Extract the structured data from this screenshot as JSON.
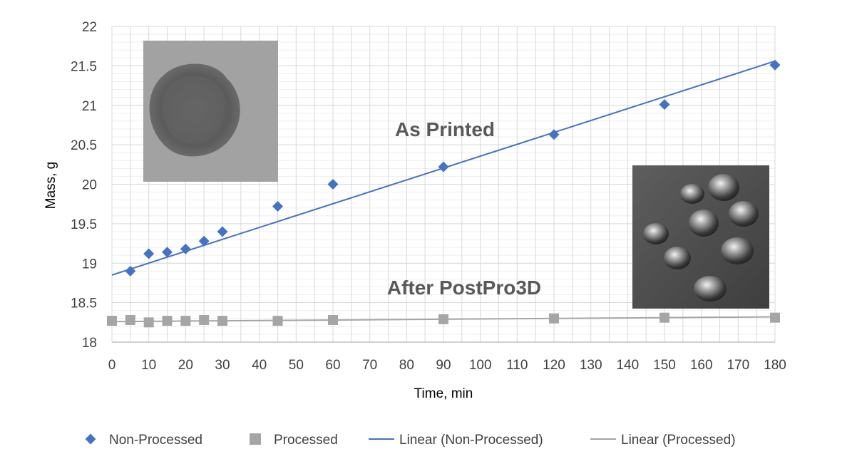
{
  "chart_data": {
    "type": "scatter",
    "xlabel": "Time, min",
    "ylabel": "Mass, g",
    "xlim": [
      0,
      180
    ],
    "ylim": [
      18,
      22
    ],
    "x_ticks": [
      0,
      5,
      10,
      15,
      20,
      25,
      30,
      35,
      40,
      45,
      50,
      55,
      60,
      65,
      70,
      75,
      80,
      85,
      90,
      95,
      100,
      105,
      110,
      115,
      120,
      125,
      130,
      135,
      140,
      145,
      150,
      155,
      160,
      165,
      170,
      175,
      180
    ],
    "x_tick_labels": [
      "0",
      "10",
      "20",
      "30",
      "40",
      "50",
      "60",
      "70",
      "80",
      "90",
      "100",
      "110",
      "120",
      "130",
      "140",
      "150",
      "160",
      "170",
      "180"
    ],
    "x_tick_label_values": [
      0,
      10,
      20,
      30,
      40,
      50,
      60,
      70,
      80,
      90,
      100,
      110,
      120,
      130,
      140,
      150,
      160,
      170,
      180
    ],
    "y_ticks": [
      18,
      18.5,
      19,
      19.5,
      20,
      20.5,
      21,
      21.5,
      22
    ],
    "y_tick_labels": [
      "18",
      "18.5",
      "19",
      "19.5",
      "20",
      "20.5",
      "21",
      "21.5",
      "22"
    ],
    "grid": true,
    "legend_position": "bottom",
    "series": [
      {
        "name": "Non-Processed",
        "marker": "diamond",
        "color": "#4472C4",
        "x": [
          5,
          10,
          15,
          20,
          25,
          30,
          45,
          60,
          90,
          120,
          150,
          180
        ],
        "y": [
          18.9,
          19.12,
          19.14,
          19.18,
          19.28,
          19.4,
          19.72,
          20.0,
          20.22,
          20.63,
          21.01,
          21.51
        ]
      },
      {
        "name": "Processed",
        "marker": "square",
        "color": "#A5A5A5",
        "x": [
          0,
          5,
          10,
          15,
          20,
          25,
          30,
          45,
          60,
          90,
          120,
          150,
          180
        ],
        "y": [
          18.27,
          18.28,
          18.25,
          18.27,
          18.27,
          18.28,
          18.27,
          18.27,
          18.28,
          18.29,
          18.3,
          18.31,
          18.31
        ]
      }
    ],
    "trendlines": [
      {
        "name": "Linear (Non-Processed)",
        "color": "#4472C4",
        "x": [
          0,
          180
        ],
        "y": [
          18.85,
          21.56
        ]
      },
      {
        "name": "Linear (Processed)",
        "color": "#A5A5A5",
        "x": [
          0,
          180
        ],
        "y": [
          18.26,
          18.32
        ]
      }
    ],
    "annotations": [
      {
        "id": "as-printed",
        "text": "As Printed",
        "x": 65,
        "y": 20.8
      },
      {
        "id": "after-postpro3d",
        "text": "After PostPro3D",
        "x": 65,
        "y": 18.65
      }
    ],
    "legend": [
      {
        "label": "Non-Processed",
        "type": "diamond",
        "color": "#4472C4"
      },
      {
        "label": "Processed",
        "type": "square",
        "color": "#A5A5A5"
      },
      {
        "label": "Linear (Non-Processed)",
        "type": "line",
        "color": "#4472C4"
      },
      {
        "label": "Linear (Processed)",
        "type": "line",
        "color": "#A5A5A5"
      }
    ]
  },
  "colors": {
    "gridline": "#D9D9D9",
    "axis": "#BFBFBF"
  }
}
